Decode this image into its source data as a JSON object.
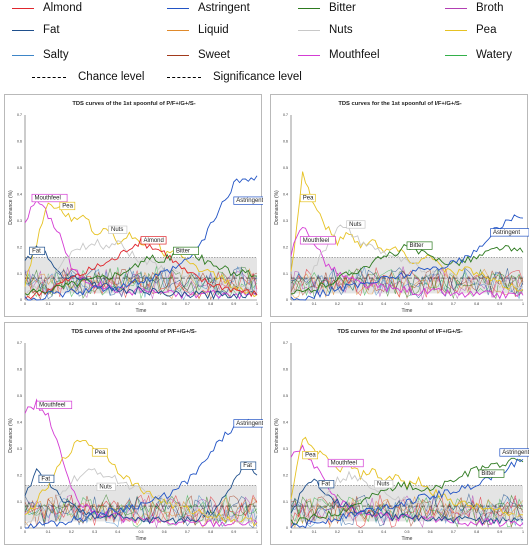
{
  "legend": {
    "items": [
      {
        "label": "Almond",
        "color": "#e0262d"
      },
      {
        "label": "Astringent",
        "color": "#2254c5"
      },
      {
        "label": "Bitter",
        "color": "#2d7a1f"
      },
      {
        "label": "Broth",
        "color": "#b23fb3"
      },
      {
        "label": "Fat",
        "color": "#1f4f8c"
      },
      {
        "label": "Liquid",
        "color": "#e08a2b"
      },
      {
        "label": "Nuts",
        "color": "#c8c8c8"
      },
      {
        "label": "Pea",
        "color": "#e6c223"
      },
      {
        "label": "Salty",
        "color": "#3e86c8"
      },
      {
        "label": "Sweet",
        "color": "#a23a1c"
      },
      {
        "label": "Mouthfeel",
        "color": "#d43cd4"
      },
      {
        "label": "Watery",
        "color": "#33b04a"
      }
    ],
    "chance_label": "Chance level",
    "significance_label": "Significance level"
  },
  "chart_data": [
    {
      "type": "line",
      "title": "TDS curves of the 1st spoonful of P/F+/G+/S-",
      "xlabel": "Time",
      "ylabel": "Dominance (%)",
      "xlim": [
        0,
        1
      ],
      "ylim": [
        0,
        0.7
      ],
      "x_ticks": [
        "0",
        "0.1",
        "0.2",
        "0.3",
        "0.4",
        "0.5",
        "0.6",
        "0.7",
        "0.8",
        "0.9",
        "1"
      ],
      "y_ticks": [
        "0",
        "0.1",
        "0.2",
        "0.3",
        "0.4",
        "0.5",
        "0.6",
        "0.7"
      ],
      "chance_level": 0.083,
      "significance_level": 0.16,
      "x": [
        0,
        0.05,
        0.1,
        0.15,
        0.2,
        0.25,
        0.3,
        0.35,
        0.4,
        0.45,
        0.5,
        0.55,
        0.6,
        0.65,
        0.7,
        0.75,
        0.8,
        0.85,
        0.9,
        0.95,
        1.0
      ],
      "series": [
        {
          "name": "Mouthfeel",
          "values": [
            0.3,
            0.38,
            0.32,
            0.25,
            0.12,
            0.08,
            0.06,
            0.05,
            0.04,
            0.03,
            0.04,
            0.03,
            0.03,
            0.02,
            0.02,
            0.02,
            0.03,
            0.02,
            0.02,
            0.02,
            0.02
          ]
        },
        {
          "name": "Pea",
          "values": [
            0.05,
            0.22,
            0.36,
            0.35,
            0.3,
            0.33,
            0.25,
            0.28,
            0.22,
            0.25,
            0.2,
            0.24,
            0.18,
            0.2,
            0.15,
            0.12,
            0.1,
            0.08,
            0.05,
            0.03,
            0.02
          ]
        },
        {
          "name": "Fat",
          "values": [
            0.14,
            0.2,
            0.16,
            0.1,
            0.09,
            0.08,
            0.06,
            0.05,
            0.04,
            0.03,
            0.04,
            0.03,
            0.02,
            0.02,
            0.02,
            0.02,
            0.02,
            0.02,
            0.02,
            0.02,
            0.02
          ]
        },
        {
          "name": "Nuts",
          "values": [
            0.02,
            0.05,
            0.08,
            0.12,
            0.18,
            0.2,
            0.22,
            0.2,
            0.23,
            0.18,
            0.15,
            0.14,
            0.12,
            0.1,
            0.09,
            0.08,
            0.07,
            0.06,
            0.05,
            0.04,
            0.03
          ]
        },
        {
          "name": "Almond",
          "values": [
            0.01,
            0.02,
            0.04,
            0.06,
            0.08,
            0.1,
            0.12,
            0.14,
            0.16,
            0.2,
            0.22,
            0.2,
            0.18,
            0.14,
            0.1,
            0.08,
            0.06,
            0.05,
            0.04,
            0.03,
            0.02
          ]
        },
        {
          "name": "Bitter",
          "values": [
            0.02,
            0.03,
            0.04,
            0.05,
            0.06,
            0.07,
            0.08,
            0.09,
            0.1,
            0.12,
            0.14,
            0.16,
            0.15,
            0.18,
            0.19,
            0.16,
            0.14,
            0.12,
            0.1,
            0.1,
            0.09
          ]
        },
        {
          "name": "Astringent",
          "values": [
            0.0,
            0.01,
            0.02,
            0.02,
            0.03,
            0.03,
            0.04,
            0.05,
            0.05,
            0.06,
            0.07,
            0.08,
            0.1,
            0.12,
            0.15,
            0.2,
            0.28,
            0.36,
            0.44,
            0.46,
            0.47
          ]
        }
      ],
      "annotations": [
        "Mouthfeel",
        "Pea",
        "Fat",
        "Nuts",
        "Almond",
        "Bitter",
        "Astringent"
      ]
    },
    {
      "type": "line",
      "title": "TDS curves for the 1st spoonful of I/F+/G+/S-",
      "xlabel": "Time",
      "ylabel": "Dominance (%)",
      "xlim": [
        0,
        1
      ],
      "ylim": [
        0,
        0.7
      ],
      "x_ticks": [
        "0",
        "0.1",
        "0.2",
        "0.3",
        "0.4",
        "0.5",
        "0.6",
        "0.7",
        "0.8",
        "0.9",
        "1"
      ],
      "y_ticks": [
        "0",
        "0.1",
        "0.2",
        "0.3",
        "0.4",
        "0.5",
        "0.6",
        "0.7"
      ],
      "chance_level": 0.083,
      "significance_level": 0.16,
      "x": [
        0,
        0.05,
        0.1,
        0.15,
        0.2,
        0.25,
        0.3,
        0.35,
        0.4,
        0.45,
        0.5,
        0.55,
        0.6,
        0.65,
        0.7,
        0.75,
        0.8,
        0.85,
        0.9,
        0.95,
        1.0
      ],
      "series": [
        {
          "name": "Pea",
          "values": [
            0.1,
            0.48,
            0.36,
            0.28,
            0.22,
            0.26,
            0.2,
            0.24,
            0.18,
            0.2,
            0.16,
            0.14,
            0.18,
            0.12,
            0.1,
            0.12,
            0.1,
            0.08,
            0.06,
            0.05,
            0.04
          ]
        },
        {
          "name": "Mouthfeel",
          "values": [
            0.18,
            0.28,
            0.22,
            0.14,
            0.1,
            0.08,
            0.06,
            0.05,
            0.05,
            0.04,
            0.04,
            0.03,
            0.03,
            0.03,
            0.02,
            0.02,
            0.02,
            0.02,
            0.02,
            0.02,
            0.02
          ]
        },
        {
          "name": "Nuts",
          "values": [
            0.02,
            0.06,
            0.12,
            0.2,
            0.28,
            0.26,
            0.22,
            0.2,
            0.18,
            0.16,
            0.14,
            0.12,
            0.1,
            0.1,
            0.09,
            0.08,
            0.07,
            0.06,
            0.06,
            0.05,
            0.05
          ]
        },
        {
          "name": "Bitter",
          "values": [
            0.02,
            0.03,
            0.04,
            0.06,
            0.08,
            0.1,
            0.12,
            0.14,
            0.16,
            0.18,
            0.2,
            0.18,
            0.16,
            0.15,
            0.14,
            0.15,
            0.16,
            0.18,
            0.2,
            0.19,
            0.18
          ]
        },
        {
          "name": "Astringent",
          "values": [
            0.0,
            0.01,
            0.02,
            0.03,
            0.04,
            0.05,
            0.06,
            0.07,
            0.08,
            0.09,
            0.1,
            0.11,
            0.12,
            0.13,
            0.14,
            0.16,
            0.18,
            0.24,
            0.28,
            0.31,
            0.31
          ]
        }
      ],
      "annotations": [
        "Pea",
        "Mouthfeel",
        "Nuts",
        "Bitter",
        "Astringent"
      ]
    },
    {
      "type": "line",
      "title": "TDS curves of the 2nd spoonful of P/F+/G+/S-",
      "xlabel": "Time",
      "ylabel": "Dominance (%)",
      "xlim": [
        0,
        1
      ],
      "ylim": [
        0,
        0.7
      ],
      "x_ticks": [
        "0",
        "0.1",
        "0.2",
        "0.3",
        "0.4",
        "0.5",
        "0.6",
        "0.7",
        "0.8",
        "0.9",
        "1"
      ],
      "y_ticks": [
        "0",
        "0.1",
        "0.2",
        "0.3",
        "0.4",
        "0.5",
        "0.6",
        "0.7"
      ],
      "chance_level": 0.083,
      "significance_level": 0.16,
      "x": [
        0,
        0.05,
        0.1,
        0.15,
        0.2,
        0.25,
        0.3,
        0.35,
        0.4,
        0.45,
        0.5,
        0.55,
        0.6,
        0.65,
        0.7,
        0.75,
        0.8,
        0.85,
        0.9,
        0.95,
        1.0
      ],
      "series": [
        {
          "name": "Mouthfeel",
          "values": [
            0.44,
            0.47,
            0.42,
            0.3,
            0.14,
            0.08,
            0.06,
            0.05,
            0.04,
            0.03,
            0.03,
            0.03,
            0.02,
            0.02,
            0.02,
            0.02,
            0.02,
            0.02,
            0.02,
            0.02,
            0.02
          ]
        },
        {
          "name": "Fat",
          "values": [
            0.12,
            0.22,
            0.18,
            0.12,
            0.08,
            0.06,
            0.05,
            0.04,
            0.04,
            0.03,
            0.03,
            0.03,
            0.03,
            0.03,
            0.03,
            0.04,
            0.06,
            0.1,
            0.18,
            0.24,
            0.2
          ]
        },
        {
          "name": "Pea",
          "values": [
            0.04,
            0.1,
            0.16,
            0.24,
            0.3,
            0.34,
            0.3,
            0.28,
            0.22,
            0.18,
            0.15,
            0.12,
            0.1,
            0.08,
            0.07,
            0.06,
            0.05,
            0.04,
            0.03,
            0.03,
            0.02
          ]
        },
        {
          "name": "Nuts",
          "values": [
            0.02,
            0.04,
            0.08,
            0.12,
            0.18,
            0.2,
            0.22,
            0.2,
            0.18,
            0.16,
            0.14,
            0.12,
            0.1,
            0.08,
            0.07,
            0.06,
            0.05,
            0.04,
            0.04,
            0.03,
            0.03
          ]
        },
        {
          "name": "Astringent",
          "values": [
            0.0,
            0.01,
            0.02,
            0.02,
            0.03,
            0.04,
            0.05,
            0.06,
            0.07,
            0.08,
            0.09,
            0.1,
            0.12,
            0.14,
            0.18,
            0.22,
            0.28,
            0.34,
            0.38,
            0.4,
            0.39
          ]
        }
      ],
      "annotations": [
        "Mouthfeel",
        "Fat",
        "Pea",
        "Nuts",
        "Astringent",
        "Fat"
      ]
    },
    {
      "type": "line",
      "title": "TDS curves for the 2nd spoonful of I/F+/G+/S-",
      "xlabel": "Time",
      "ylabel": "Dominance (%)",
      "xlim": [
        0,
        1
      ],
      "ylim": [
        0,
        0.7
      ],
      "x_ticks": [
        "0",
        "0.1",
        "0.2",
        "0.3",
        "0.4",
        "0.5",
        "0.6",
        "0.7",
        "0.8",
        "0.9",
        "1"
      ],
      "y_ticks": [
        "0",
        "0.1",
        "0.2",
        "0.3",
        "0.4",
        "0.5",
        "0.6",
        "0.7"
      ],
      "chance_level": 0.083,
      "significance_level": 0.16,
      "x": [
        0,
        0.05,
        0.1,
        0.15,
        0.2,
        0.25,
        0.3,
        0.35,
        0.4,
        0.45,
        0.5,
        0.55,
        0.6,
        0.65,
        0.7,
        0.75,
        0.8,
        0.85,
        0.9,
        0.95,
        1.0
      ],
      "series": [
        {
          "name": "Pea",
          "values": [
            0.1,
            0.34,
            0.3,
            0.26,
            0.22,
            0.24,
            0.2,
            0.22,
            0.18,
            0.2,
            0.16,
            0.18,
            0.14,
            0.12,
            0.1,
            0.09,
            0.08,
            0.07,
            0.06,
            0.05,
            0.05
          ]
        },
        {
          "name": "Mouthfeel",
          "values": [
            0.28,
            0.3,
            0.24,
            0.16,
            0.1,
            0.08,
            0.06,
            0.05,
            0.05,
            0.04,
            0.04,
            0.03,
            0.03,
            0.03,
            0.03,
            0.02,
            0.02,
            0.02,
            0.02,
            0.02,
            0.02
          ]
        },
        {
          "name": "Fat",
          "values": [
            0.06,
            0.14,
            0.18,
            0.14,
            0.1,
            0.08,
            0.06,
            0.05,
            0.05,
            0.04,
            0.04,
            0.04,
            0.03,
            0.03,
            0.03,
            0.03,
            0.03,
            0.03,
            0.03,
            0.03,
            0.03
          ]
        },
        {
          "name": "Nuts",
          "values": [
            0.02,
            0.04,
            0.08,
            0.14,
            0.18,
            0.2,
            0.18,
            0.16,
            0.14,
            0.12,
            0.1,
            0.09,
            0.08,
            0.07,
            0.06,
            0.06,
            0.05,
            0.05,
            0.04,
            0.04,
            0.04
          ]
        },
        {
          "name": "Bitter",
          "values": [
            0.02,
            0.03,
            0.04,
            0.05,
            0.06,
            0.08,
            0.1,
            0.12,
            0.14,
            0.16,
            0.16,
            0.15,
            0.14,
            0.16,
            0.18,
            0.2,
            0.22,
            0.24,
            0.24,
            0.25,
            0.25
          ]
        },
        {
          "name": "Astringent",
          "values": [
            0.0,
            0.01,
            0.02,
            0.03,
            0.04,
            0.05,
            0.06,
            0.07,
            0.08,
            0.09,
            0.1,
            0.11,
            0.12,
            0.13,
            0.14,
            0.15,
            0.17,
            0.19,
            0.21,
            0.24,
            0.26
          ]
        }
      ],
      "annotations": [
        "Pea",
        "Mouthfeel",
        "Fat",
        "Nuts",
        "Bitter",
        "Astringent"
      ]
    }
  ]
}
